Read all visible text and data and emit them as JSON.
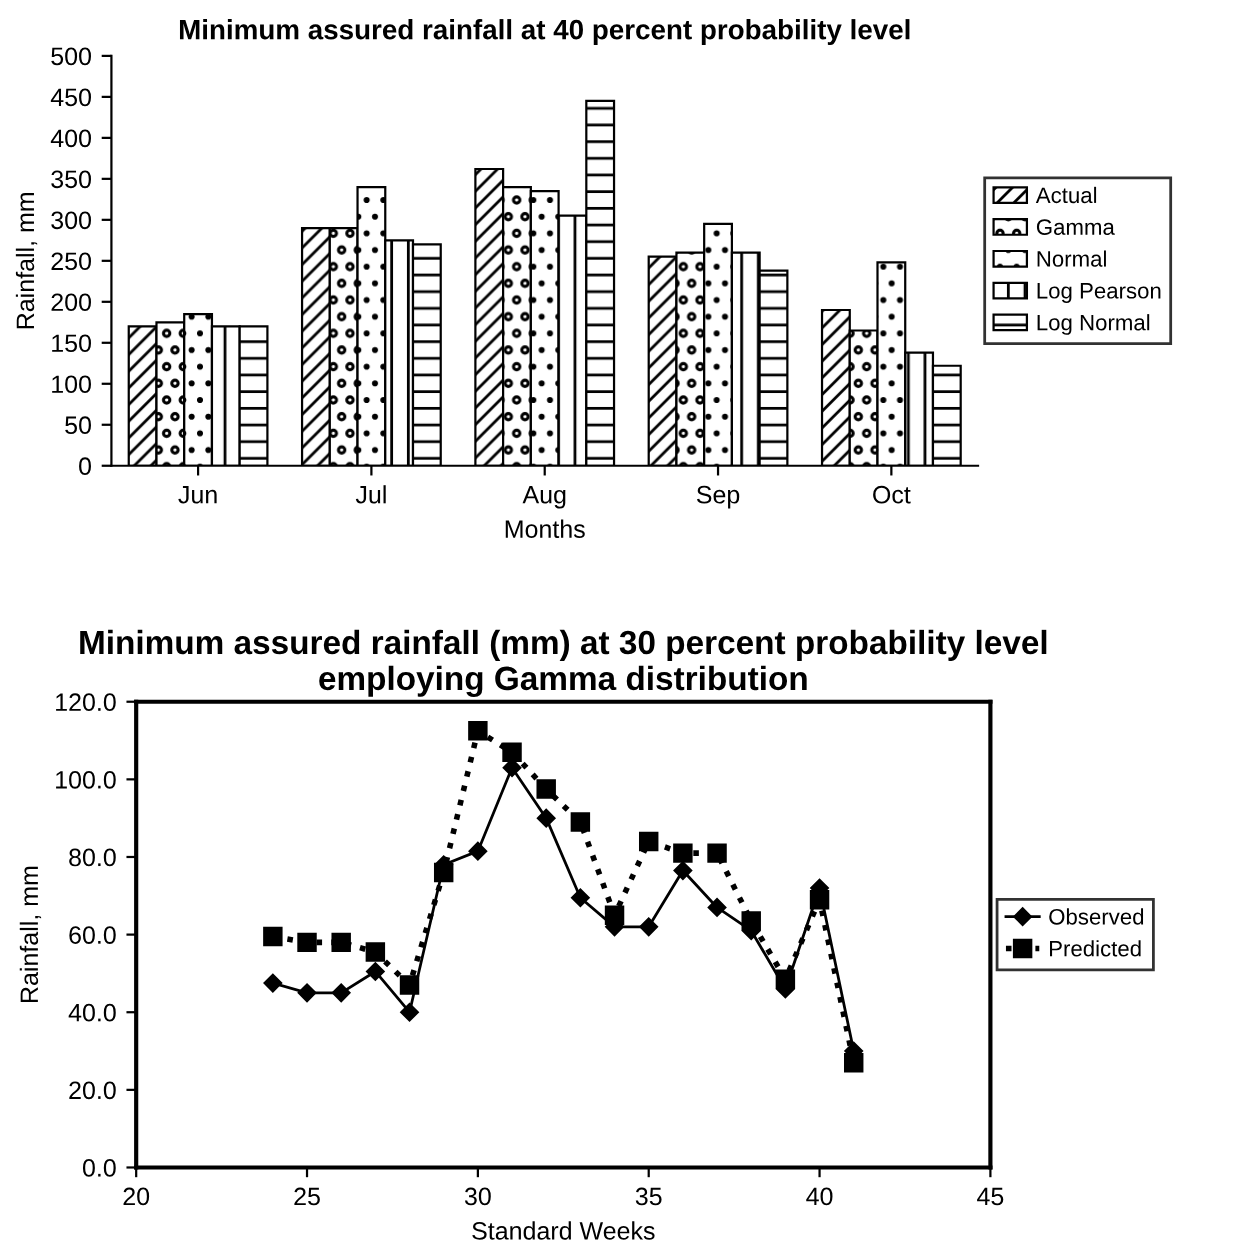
{
  "chart_data": [
    {
      "type": "bar",
      "title": "Minimum assured rainfall at 40 percent probability level",
      "xlabel": "Months",
      "ylabel": "Rainfall, mm",
      "categories": [
        "Jun",
        "Jul",
        "Aug",
        "Sep",
        "Oct"
      ],
      "series": [
        {
          "name": "Actual",
          "color": "#000000",
          "values": [
            170,
            290,
            362,
            255,
            190
          ]
        },
        {
          "name": "Gamma",
          "color": "#000000",
          "values": [
            175,
            290,
            340,
            260,
            165
          ]
        },
        {
          "name": "Normal",
          "color": "#000000",
          "values": [
            185,
            340,
            335,
            295,
            248
          ]
        },
        {
          "name": "Log Pearson",
          "color": "#000000",
          "values": [
            170,
            275,
            305,
            260,
            138
          ]
        },
        {
          "name": "Log Normal",
          "color": "#000000",
          "values": [
            170,
            270,
            445,
            238,
            122
          ]
        }
      ],
      "ylim": [
        0,
        500
      ],
      "yticks": [
        0,
        50,
        100,
        150,
        200,
        250,
        300,
        350,
        400,
        450,
        500
      ],
      "grid": false,
      "legend": "right"
    },
    {
      "type": "line",
      "title": "Minimum assured rainfall (mm) at 30 percent probability level employing Gamma distribution",
      "xlabel": "Standard Weeks",
      "ylabel": "Rainfall, mm",
      "x": [
        24,
        25,
        26,
        27,
        28,
        29,
        30,
        31,
        32,
        33,
        34,
        35,
        36,
        37,
        38,
        39,
        40,
        41
      ],
      "series": [
        {
          "name": "Observed",
          "color": "#000000",
          "marker": "diamond",
          "line_style": "solid",
          "values": [
            47.5,
            45,
            45,
            50.5,
            40,
            78,
            81.5,
            103,
            90,
            69.5,
            62,
            62,
            76.5,
            67,
            61,
            46,
            72,
            30
          ]
        },
        {
          "name": "Predicted",
          "color": "#000000",
          "marker": "square",
          "line_style": "dotted",
          "values": [
            59.5,
            58,
            58,
            55.5,
            47,
            76,
            112.5,
            107,
            97.5,
            89,
            65,
            84,
            81,
            81,
            63.5,
            48.5,
            69,
            27
          ]
        }
      ],
      "xlim": [
        20,
        45
      ],
      "xticks": [
        20,
        25,
        30,
        35,
        40,
        45
      ],
      "ylim": [
        0,
        120
      ],
      "yticks": [
        {
          "value": 0,
          "label": "0.0"
        },
        {
          "value": 20,
          "label": "20.0"
        },
        {
          "value": 40,
          "label": "40.0"
        },
        {
          "value": 60,
          "label": "60.0"
        },
        {
          "value": 80,
          "label": "80.0"
        },
        {
          "value": 100,
          "label": "100.0"
        },
        {
          "value": 120,
          "label": "120.0"
        }
      ],
      "grid": false,
      "legend": "right"
    }
  ]
}
